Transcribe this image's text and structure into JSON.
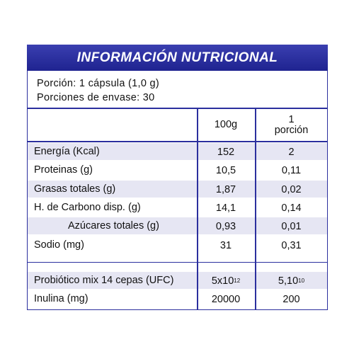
{
  "header": {
    "title": "INFORMACIÓN NUTRICIONAL"
  },
  "portion": {
    "lines": [
      "Porción: 1 cápsula (1,0 g)",
      "Porciones de envase: 30"
    ]
  },
  "table": {
    "columns": [
      "100g",
      "1\nporción"
    ],
    "groups": [
      [
        {
          "label": "Energía (Kcal)",
          "values": [
            "152",
            "2"
          ]
        },
        {
          "label": "Proteinas (g)",
          "values": [
            "10,5",
            "0,11"
          ]
        },
        {
          "label": "Grasas totales (g)",
          "values": [
            "1,87",
            "0,02"
          ]
        },
        {
          "label": "H. de Carbono disp. (g)",
          "values": [
            "14,1",
            "0,14"
          ]
        },
        {
          "label": "Azúcares totales (g)",
          "values": [
            "0,93",
            "0,01"
          ],
          "indent": true
        },
        {
          "label": "Sodio (mg)",
          "values": [
            "31",
            "0,31"
          ]
        }
      ],
      [
        {
          "label": "Probiótico mix 14 cepas (UFC)",
          "values": [
            {
              "base": "5x10",
              "sup": "12"
            },
            {
              "base": "5,10",
              "sup": "10"
            }
          ]
        },
        {
          "label": "Inulina (mg)",
          "values": [
            "20000",
            "200"
          ]
        }
      ]
    ]
  }
}
